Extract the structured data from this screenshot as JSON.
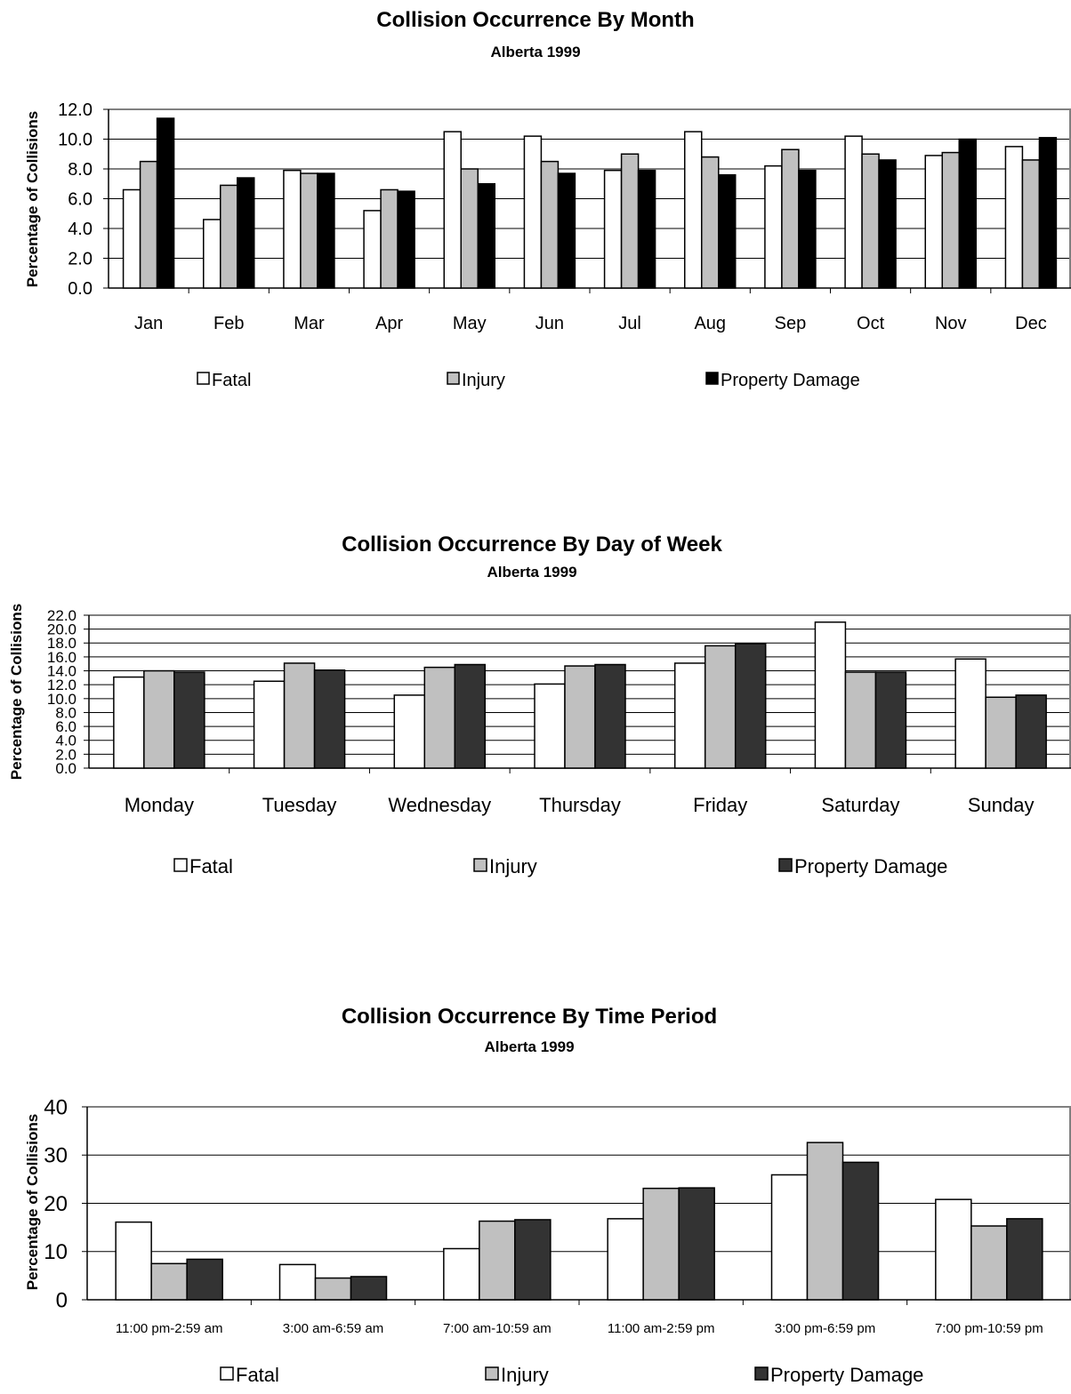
{
  "colors": {
    "fatal": "#ffffff",
    "injury": "#c0c0c0",
    "property_month": "#000000",
    "property": "#333333",
    "grid": "#000000",
    "frame": "#808080"
  },
  "chart_data": [
    {
      "type": "bar",
      "title": "Collision Occurrence By Month",
      "subtitle": "Alberta 1999",
      "ylabel": "Percentage of Collisions",
      "xlabel": "",
      "ylim": [
        0,
        12
      ],
      "yticks": [
        "0.0",
        "2.0",
        "4.0",
        "6.0",
        "8.0",
        "10.0",
        "12.0"
      ],
      "grid": true,
      "legend": "bottom",
      "categories": [
        "Jan",
        "Feb",
        "Mar",
        "Apr",
        "May",
        "Jun",
        "Jul",
        "Aug",
        "Sep",
        "Oct",
        "Nov",
        "Dec"
      ],
      "series": [
        {
          "name": "Fatal",
          "color": "#ffffff",
          "values": [
            6.6,
            4.6,
            7.9,
            5.2,
            10.5,
            10.2,
            7.9,
            10.5,
            8.2,
            10.2,
            8.9,
            9.5
          ]
        },
        {
          "name": "Injury",
          "color": "#c0c0c0",
          "values": [
            8.5,
            6.9,
            7.7,
            6.6,
            8.0,
            8.5,
            9.0,
            8.8,
            9.3,
            9.0,
            9.1,
            8.6
          ]
        },
        {
          "name": "Property Damage",
          "color": "#000000",
          "values": [
            11.4,
            7.4,
            7.7,
            6.5,
            7.0,
            7.7,
            7.9,
            7.6,
            7.9,
            8.6,
            10.0,
            10.1
          ]
        }
      ]
    },
    {
      "type": "bar",
      "title": "Collision Occurrence By Day of Week",
      "subtitle": "Alberta 1999",
      "ylabel": "Percentage of Collisions",
      "xlabel": "",
      "ylim": [
        0,
        22
      ],
      "yticks": [
        "0.0",
        "2.0",
        "4.0",
        "6.0",
        "8.0",
        "10.0",
        "12.0",
        "14.0",
        "16.0",
        "18.0",
        "20.0",
        "22.0"
      ],
      "grid": true,
      "legend": "bottom",
      "categories": [
        "Monday",
        "Tuesday",
        "Wednesday",
        "Thursday",
        "Friday",
        "Saturday",
        "Sunday"
      ],
      "series": [
        {
          "name": "Fatal",
          "color": "#ffffff",
          "values": [
            13.1,
            12.5,
            10.5,
            12.1,
            15.1,
            21.0,
            15.7
          ]
        },
        {
          "name": "Injury",
          "color": "#c0c0c0",
          "values": [
            14.0,
            15.1,
            14.5,
            14.7,
            17.6,
            13.8,
            10.2
          ]
        },
        {
          "name": "Property Damage",
          "color": "#333333",
          "values": [
            13.8,
            14.1,
            14.9,
            14.9,
            17.9,
            13.8,
            10.5
          ]
        }
      ]
    },
    {
      "type": "bar",
      "title": "Collision Occurrence By Time Period",
      "subtitle": "Alberta 1999",
      "ylabel": "Percentage of Collisions",
      "xlabel": "",
      "ylim": [
        0,
        40
      ],
      "yticks": [
        "0",
        "10",
        "20",
        "30",
        "40"
      ],
      "grid": true,
      "legend": "bottom",
      "categories": [
        "11:00 pm-2:59 am",
        "3:00 am-6:59 am",
        "7:00 am-10:59 am",
        "11:00 am-2:59 pm",
        "3:00 pm-6:59 pm",
        "7:00 pm-10:59 pm"
      ],
      "series": [
        {
          "name": "Fatal",
          "color": "#ffffff",
          "values": [
            16.1,
            7.3,
            10.6,
            16.8,
            25.9,
            20.8
          ]
        },
        {
          "name": "Injury",
          "color": "#c0c0c0",
          "values": [
            7.5,
            4.5,
            16.3,
            23.1,
            32.6,
            15.3
          ]
        },
        {
          "name": "Property Damage",
          "color": "#333333",
          "values": [
            8.4,
            4.8,
            16.6,
            23.2,
            28.5,
            16.8
          ]
        }
      ]
    }
  ]
}
